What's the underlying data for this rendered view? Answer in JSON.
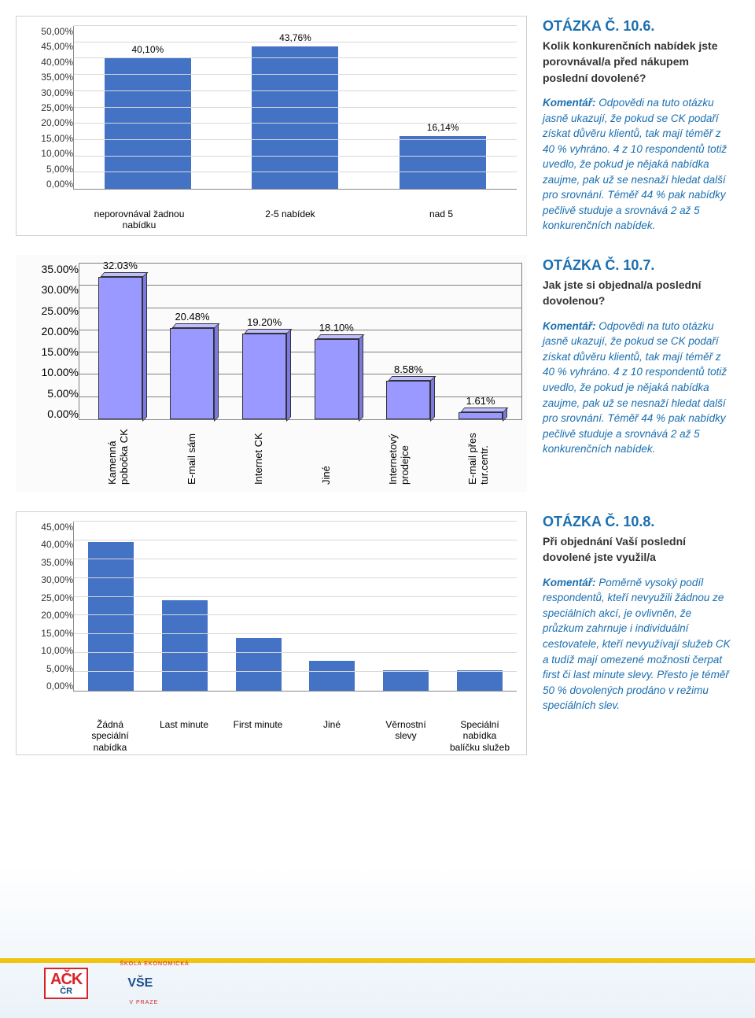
{
  "q6": {
    "title": "OTÁZKA Č. 10.6.",
    "subtitle": "Kolik konkurenčních nabídek jste porovnával/a před nákupem poslední dovolené?",
    "comment_lead": "Komentář:",
    "comment": " Odpovědi na tuto otázku jasně ukazují, že pokud se CK podaří získat důvěru klientů, tak mají téměř z 40 % vyhráno. 4 z 10 respondentů totiž uvedlo, že pokud je nějaká nabídka zaujme, pak už se nesnaží hledat další pro srovnání. Téměř 44 % pak nabídky pečlivě studuje a srovnává 2 až 5 konkurenčních nabídek."
  },
  "chart1": {
    "type": "bar",
    "bar_color": "#4472c4",
    "grid_color": "#d8d8d8",
    "ymax": 50,
    "ystep": 5,
    "yticks": [
      "0,00%",
      "5,00%",
      "10,00%",
      "15,00%",
      "20,00%",
      "25,00%",
      "30,00%",
      "35,00%",
      "40,00%",
      "45,00%",
      "50,00%"
    ],
    "categories": [
      "neporovnával žadnou nabídku",
      "2-5 nabídek",
      "nad 5"
    ],
    "values": [
      40.1,
      43.76,
      16.14
    ],
    "value_labels": [
      "40,10%",
      "43,76%",
      "16,14%"
    ]
  },
  "q7": {
    "title": "OTÁZKA Č. 10.7.",
    "subtitle": "Jak jste si objednal/a poslední dovolenou?",
    "comment_lead": "Komentář:",
    "comment": " Odpovědi na tuto otázku jasně ukazují, že pokud se CK podaří získat důvěru klientů, tak mají téměř z 40 % vyhráno. 4 z 10 respondentů totiž uvedlo, že pokud je nějaká nabídka zaujme, pak už se nesnaží hledat další pro srovnání. Téměř 44 % pak nabídky pečlivě studuje a srovnává 2 až 5 konkurenčních nabídek."
  },
  "chart2": {
    "type": "bar",
    "bar_color": "#9999ff",
    "grid_color": "#808080",
    "ymax": 35,
    "ystep": 5,
    "yticks": [
      "0.00%",
      "5.00%",
      "10.00%",
      "15.00%",
      "20.00%",
      "25.00%",
      "30.00%",
      "35.00%"
    ],
    "categories": [
      "Kamenná pobočka CK",
      "E-mail sám",
      "Internet CK",
      "Jiné",
      "Internetový prodejce",
      "E-mail přes tur.centr."
    ],
    "values": [
      32.03,
      20.48,
      19.2,
      18.1,
      8.58,
      1.61
    ],
    "value_labels": [
      "32.03%",
      "20.48%",
      "19.20%",
      "18.10%",
      "8.58%",
      "1.61%"
    ]
  },
  "q8": {
    "title": "OTÁZKA Č. 10.8.",
    "subtitle": "Při objednání Vaší poslední dovolené jste využil/a",
    "comment_lead": "Komentář:",
    "comment": " Poměrně vysoký podíl respondentů, kteří nevyužili žádnou ze speciálních akcí, je ovlivněn, že průzkum zahrnuje i individuální cestovatele, kteří nevyužívají služeb CK a tudíž mají omezené možnosti čerpat first či last minute slevy. Přesto je téměř 50 % dovolených prodáno v režimu speciálních slev."
  },
  "chart3": {
    "type": "bar",
    "bar_color": "#4472c4",
    "grid_color": "#d8d8d8",
    "ymax": 45,
    "ystep": 5,
    "yticks": [
      "0,00%",
      "5,00%",
      "10,00%",
      "15,00%",
      "20,00%",
      "25,00%",
      "30,00%",
      "35,00%",
      "40,00%",
      "45,00%"
    ],
    "categories": [
      "Žádná speciální nabídka",
      "Last minute",
      "First minute",
      "Jiné",
      "Věrnostní slevy",
      "Speciální nabídka balíčku služeb"
    ],
    "values": [
      39.5,
      24.0,
      14.0,
      8.0,
      5.5,
      5.5
    ]
  },
  "logos": {
    "ack_top": "AČK",
    "ack_bottom": "ČR",
    "vse": "VŠE",
    "vse_arc_top": "ŠKOLA EKONOMICKÁ",
    "vse_arc_bottom": "V PRAZE"
  }
}
